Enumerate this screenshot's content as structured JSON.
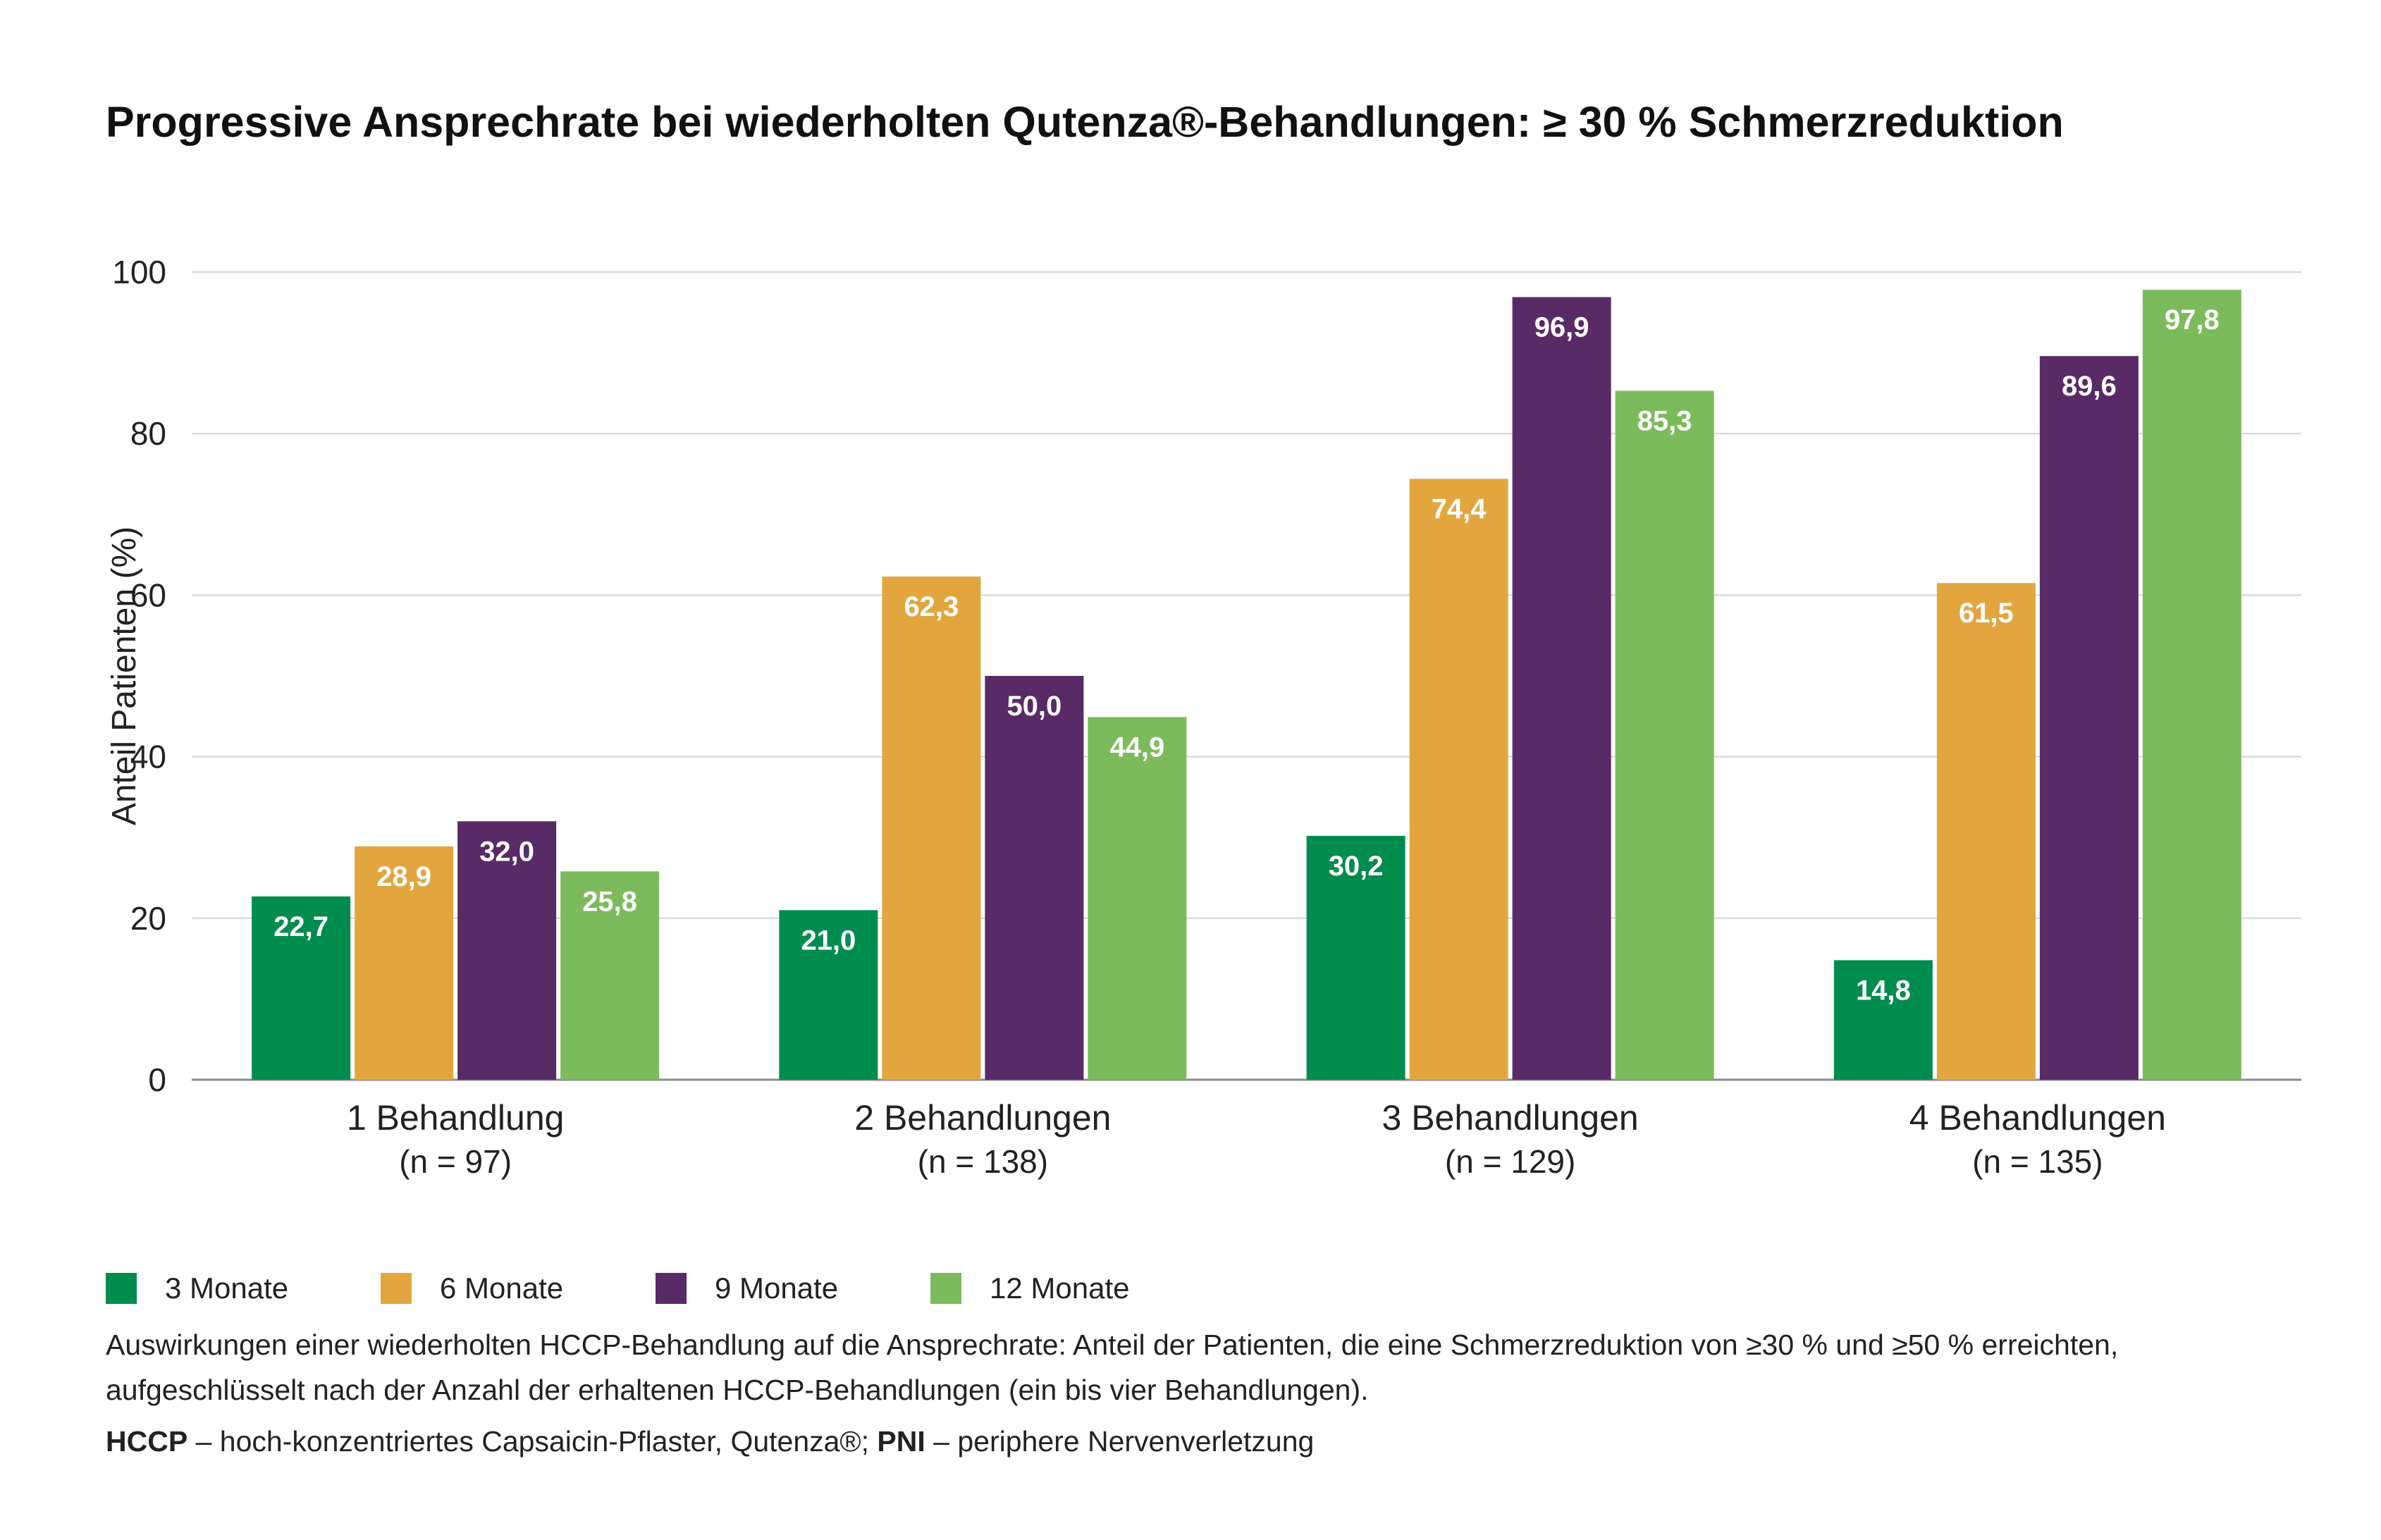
{
  "chart_data": {
    "type": "bar",
    "title": "Progressive Ansprechrate bei wiederholten Qutenza®-Behandlungen: ≥ 30 % Schmerzreduktion",
    "ylabel": "Anteil Patienten (%)",
    "xlabel": "",
    "ylim": [
      0,
      100
    ],
    "yticks": [
      "0",
      "20",
      "40",
      "60",
      "80",
      "100"
    ],
    "grid": true,
    "legend_position": "bottom-left",
    "categories": [
      "1 Behandlung",
      "2 Behandlungen",
      "3 Behandlungen",
      "4 Behandlungen"
    ],
    "category_sublabels": [
      "(n = 97)",
      "(n = 138)",
      "(n = 129)",
      "(n = 135)"
    ],
    "series": [
      {
        "name": "3 Monate",
        "color": "#008c4e",
        "values": [
          22.7,
          21.0,
          30.2,
          14.8
        ],
        "labels": [
          "22,7",
          "21,0",
          "30,2",
          "14,8"
        ]
      },
      {
        "name": "6 Monate",
        "color": "#e3a63f",
        "values": [
          28.9,
          62.3,
          74.4,
          61.5
        ],
        "labels": [
          "28,9",
          "62,3",
          "74,4",
          "61,5"
        ]
      },
      {
        "name": "9 Monate",
        "color": "#582a66",
        "values": [
          32.0,
          50.0,
          96.9,
          89.6
        ],
        "labels": [
          "32,0",
          "50,0",
          "96,9",
          "89,6"
        ]
      },
      {
        "name": "12 Monate",
        "color": "#7cbb5b",
        "values": [
          25.8,
          44.9,
          85.3,
          97.8
        ],
        "labels": [
          "25,8",
          "44,9",
          "85,3",
          "97,8"
        ]
      }
    ]
  },
  "caption": "Auswirkungen einer wiederholten HCCP-Behandlung auf die Ansprechrate: Anteil der Patienten, die eine Schmerzreduktion von ≥30 % und ≥50 % erreichten, aufgeschlüsselt nach der Anzahl der erhaltenen HCCP-Behandlungen (ein bis vier Behandlungen).",
  "footnote": {
    "abbr1": "HCCP",
    "def1": " – hoch-konzentriertes Capsaicin-Pflaster, Qutenza®; ",
    "abbr2": "PNI",
    "def2": " – periphere Nervenverletzung"
  }
}
